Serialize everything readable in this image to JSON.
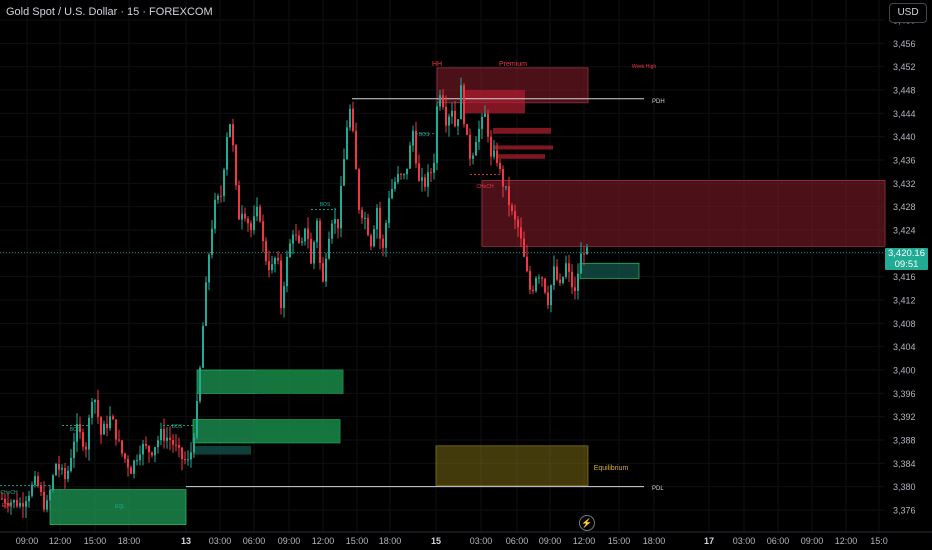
{
  "header": {
    "symbol_title": "Gold Spot / U.S. Dollar · 15 · FOREXCOM",
    "currency": "USD"
  },
  "price_tag": {
    "price": "3,420.16",
    "countdown": "09:51"
  },
  "chart_data": {
    "type": "candlestick",
    "y_axis": {
      "ticks": [
        3460,
        3456,
        3452,
        3448,
        3444,
        3440,
        3436,
        3432,
        3428,
        3424,
        3420,
        3416,
        3412,
        3408,
        3404,
        3400,
        3396,
        3392,
        3388,
        3384,
        3380,
        3376
      ],
      "range": [
        3373.5,
        3461
      ]
    },
    "x_axis": {
      "ticks": [
        "09:00",
        "12:00",
        "15:00",
        "18:00",
        "13",
        "03:00",
        "06:00",
        "09:00",
        "12:00",
        "15:00",
        "18:00",
        "15",
        "03:00",
        "06:00",
        "09:00",
        "12:00",
        "15:00",
        "18:00",
        "17",
        "03:00",
        "06:00",
        "09:00",
        "12:00",
        "15:0"
      ]
    },
    "last_price": 3420.16,
    "colors": {
      "up": "#22ab94",
      "down": "#f23645",
      "premium_zone": "#8b1e2b",
      "discount_zone": "#1fa35a",
      "equilibrium_zone": "#7a6a16"
    },
    "levels": [
      {
        "label": "PDH",
        "price": 3446.5
      },
      {
        "label": "PDL",
        "price": 3380.0
      }
    ],
    "zones": [
      {
        "label": "Premium",
        "top": 3451.8,
        "bottom": 3445.8,
        "type": "supply"
      },
      {
        "label": "",
        "top": 3432.5,
        "bottom": 3421.2,
        "type": "supply"
      },
      {
        "label": "Equilibrium",
        "top": 3387.0,
        "bottom": 3380.2,
        "type": "equilibrium"
      },
      {
        "label": "",
        "top": 3400.0,
        "bottom": 3396.0,
        "type": "demand"
      },
      {
        "label": "",
        "top": 3391.5,
        "bottom": 3387.5,
        "type": "demand"
      },
      {
        "label": "",
        "top": 3379.5,
        "bottom": 3373.5,
        "type": "demand"
      },
      {
        "label": "",
        "top": 3418.3,
        "bottom": 3415.7,
        "type": "demand"
      }
    ],
    "annotations": [
      {
        "text": "HH"
      },
      {
        "text": "Premium"
      },
      {
        "text": "Week High"
      },
      {
        "text": "PDH"
      },
      {
        "text": "BOS"
      },
      {
        "text": "BOS"
      },
      {
        "text": "BOS"
      },
      {
        "text": "BOS"
      },
      {
        "text": "CHoCH"
      },
      {
        "text": "CHoCH"
      },
      {
        "text": "EQH"
      },
      {
        "text": "EQL"
      },
      {
        "text": "Equilibrium"
      },
      {
        "text": "PDL"
      }
    ],
    "price_path": [
      [
        0,
        3378
      ],
      [
        20,
        3377
      ],
      [
        35,
        3381
      ],
      [
        45,
        3376
      ],
      [
        55,
        3384
      ],
      [
        65,
        3381
      ],
      [
        75,
        3390
      ],
      [
        85,
        3387
      ],
      [
        92,
        3397
      ],
      [
        100,
        3389
      ],
      [
        110,
        3392
      ],
      [
        120,
        3386
      ],
      [
        130,
        3383
      ],
      [
        140,
        3387
      ],
      [
        150,
        3386
      ],
      [
        160,
        3389
      ],
      [
        170,
        3388
      ],
      [
        180,
        3385
      ],
      [
        188,
        3384
      ],
      [
        192,
        3388
      ],
      [
        197,
        3395
      ],
      [
        203,
        3410
      ],
      [
        208,
        3420
      ],
      [
        213,
        3428
      ],
      [
        220,
        3430
      ],
      [
        228,
        3444
      ],
      [
        232,
        3438
      ],
      [
        237,
        3426
      ],
      [
        242,
        3428
      ],
      [
        250,
        3424
      ],
      [
        258,
        3428
      ],
      [
        263,
        3420
      ],
      [
        270,
        3417
      ],
      [
        276,
        3420
      ],
      [
        280,
        3411
      ],
      [
        285,
        3418
      ],
      [
        292,
        3424
      ],
      [
        300,
        3420
      ],
      [
        305,
        3426
      ],
      [
        310,
        3418
      ],
      [
        316,
        3426
      ],
      [
        321,
        3413
      ],
      [
        326,
        3422
      ],
      [
        331,
        3426
      ],
      [
        337,
        3425
      ],
      [
        343,
        3436
      ],
      [
        348,
        3446
      ],
      [
        352,
        3440
      ],
      [
        358,
        3428
      ],
      [
        364,
        3426
      ],
      [
        370,
        3422
      ],
      [
        376,
        3428
      ],
      [
        381,
        3419
      ],
      [
        388,
        3430
      ],
      [
        396,
        3433
      ],
      [
        404,
        3433
      ],
      [
        412,
        3441
      ],
      [
        418,
        3432
      ],
      [
        424,
        3432
      ],
      [
        430,
        3434
      ],
      [
        434,
        3437
      ],
      [
        437,
        3449
      ],
      [
        441,
        3447
      ],
      [
        446,
        3442
      ],
      [
        450,
        3446
      ],
      [
        455,
        3441
      ],
      [
        460,
        3448
      ],
      [
        465,
        3440
      ],
      [
        470,
        3436
      ],
      [
        475,
        3440
      ],
      [
        480,
        3442
      ],
      [
        485,
        3444
      ],
      [
        490,
        3436
      ],
      [
        495,
        3437
      ],
      [
        500,
        3433
      ],
      [
        506,
        3430
      ],
      [
        512,
        3426
      ],
      [
        518,
        3424
      ],
      [
        524,
        3418
      ],
      [
        530,
        3413
      ],
      [
        536,
        3417
      ],
      [
        541,
        3416
      ],
      [
        547,
        3412
      ],
      [
        553,
        3417
      ],
      [
        559,
        3414
      ],
      [
        565,
        3418
      ],
      [
        570,
        3415
      ],
      [
        574,
        3413
      ],
      [
        578,
        3418
      ],
      [
        582,
        3421
      ],
      [
        586,
        3420
      ]
    ]
  }
}
